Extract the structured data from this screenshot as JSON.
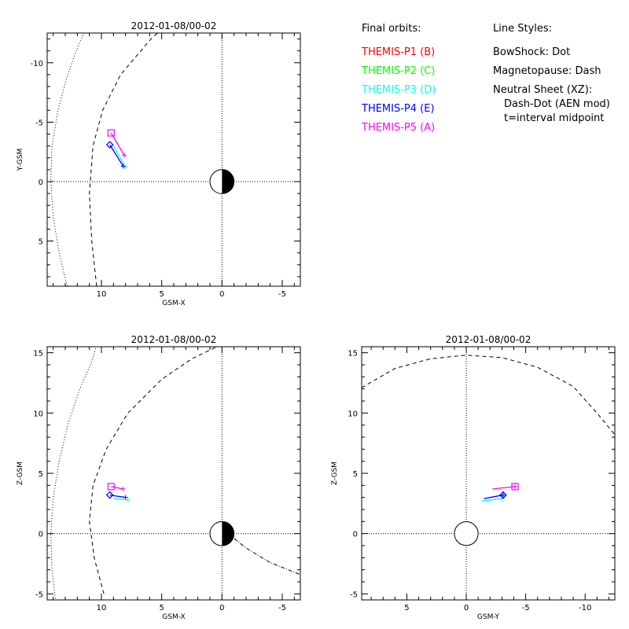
{
  "chart_data": [
    {
      "type": "line",
      "title": "2012-01-08/00-02",
      "xlabel": "GSM-X",
      "ylabel": "Y-GSM",
      "xlim": [
        14.5,
        -6.5
      ],
      "ylim": [
        8.8,
        -12.5
      ],
      "xticks": [
        {
          "v": 10,
          "label": "10"
        },
        {
          "v": 5,
          "label": "5"
        },
        {
          "v": 0,
          "label": "0"
        },
        {
          "v": -5,
          "label": "-5"
        }
      ],
      "yticks": [
        {
          "v": 5,
          "label": "5"
        },
        {
          "v": 0,
          "label": "0"
        },
        {
          "v": -5,
          "label": "-5"
        },
        {
          "v": -10,
          "label": "-10"
        }
      ],
      "bow_shock": [
        [
          12.8,
          9.0
        ],
        [
          13.5,
          6.0
        ],
        [
          14.0,
          3.0
        ],
        [
          14.2,
          0.0
        ],
        [
          14.1,
          -3.0
        ],
        [
          13.6,
          -6.0
        ],
        [
          12.8,
          -9.0
        ],
        [
          11.9,
          -11.5
        ],
        [
          11.3,
          -12.8
        ]
      ],
      "magnetopause": [
        [
          10.4,
          8.8
        ],
        [
          10.8,
          5.0
        ],
        [
          11.0,
          1.0
        ],
        [
          10.7,
          -3.0
        ],
        [
          9.9,
          -6.0
        ],
        [
          8.4,
          -9.0
        ],
        [
          5.9,
          -12.0
        ],
        [
          5.0,
          -12.8
        ]
      ],
      "series": [
        {
          "name": "THEMIS-P3",
          "color": "#00ffff",
          "points": [
            [
              9.0,
              -3.0
            ],
            [
              8.0,
              -1.2
            ]
          ]
        },
        {
          "name": "THEMIS-P4",
          "color": "#0000ff",
          "points": [
            [
              9.3,
              -3.1
            ],
            [
              8.2,
              -1.3
            ]
          ]
        },
        {
          "name": "THEMIS-P5",
          "color": "#ff00ff",
          "points": [
            [
              9.2,
              -4.1
            ],
            [
              8.1,
              -2.2
            ]
          ]
        }
      ],
      "markers": [
        {
          "name": "P5",
          "shape": "square",
          "color": "#ff00ff",
          "x": 9.2,
          "y": -4.1
        },
        {
          "name": "P4",
          "shape": "diamond",
          "color": "#0000ff",
          "x": 9.3,
          "y": -3.1
        }
      ]
    },
    {
      "type": "line",
      "title": "2012-01-08/00-02",
      "xlabel": "GSM-X",
      "ylabel": "Z-GSM",
      "xlim": [
        14.5,
        -6.5
      ],
      "ylim": [
        -5.5,
        15.5
      ],
      "xticks": [
        {
          "v": 10,
          "label": "10"
        },
        {
          "v": 5,
          "label": "5"
        },
        {
          "v": 0,
          "label": "0"
        },
        {
          "v": -5,
          "label": "-5"
        }
      ],
      "yticks": [
        {
          "v": 15,
          "label": "15"
        },
        {
          "v": 10,
          "label": "10"
        },
        {
          "v": 5,
          "label": "5"
        },
        {
          "v": 0,
          "label": "0"
        },
        {
          "v": -5,
          "label": "-5"
        }
      ],
      "bow_shock": [
        [
          13.8,
          -5.6
        ],
        [
          14.1,
          -3.0
        ],
        [
          14.2,
          0.0
        ],
        [
          14.0,
          3.0
        ],
        [
          13.5,
          6.0
        ],
        [
          12.8,
          9.0
        ],
        [
          11.8,
          12.0
        ],
        [
          10.9,
          14.0
        ],
        [
          10.4,
          15.6
        ]
      ],
      "magnetopause": [
        [
          9.8,
          -5.0
        ],
        [
          10.6,
          -2.0
        ],
        [
          11.0,
          1.0
        ],
        [
          10.7,
          4.0
        ],
        [
          9.6,
          7.0
        ],
        [
          7.8,
          10.0
        ],
        [
          5.0,
          12.8
        ],
        [
          2.5,
          14.5
        ],
        [
          0.0,
          15.7
        ]
      ],
      "neutral_sheet": [
        [
          -0.5,
          0.0
        ],
        [
          -2.0,
          -1.2
        ],
        [
          -4.0,
          -2.4
        ],
        [
          -6.5,
          -3.4
        ]
      ],
      "series": [
        {
          "name": "THEMIS-P3",
          "color": "#00ffff",
          "points": [
            [
              9.0,
              2.9
            ],
            [
              7.8,
              2.8
            ]
          ]
        },
        {
          "name": "THEMIS-P4",
          "color": "#0000ff",
          "points": [
            [
              9.3,
              3.2
            ],
            [
              8.0,
              3.0
            ]
          ]
        },
        {
          "name": "THEMIS-P5",
          "color": "#ff00ff",
          "points": [
            [
              9.2,
              3.9
            ],
            [
              8.2,
              3.7
            ]
          ]
        }
      ],
      "markers": [
        {
          "name": "P5",
          "shape": "square",
          "color": "#ff00ff",
          "x": 9.2,
          "y": 3.9
        },
        {
          "name": "P4",
          "shape": "diamond",
          "color": "#0000ff",
          "x": 9.3,
          "y": 3.2
        }
      ]
    },
    {
      "type": "line",
      "title": "2012-01-08/00-02",
      "xlabel": "GSM-Y",
      "ylabel": "Z-GSM",
      "xlim": [
        8.8,
        -12.5
      ],
      "ylim": [
        -5.5,
        15.5
      ],
      "xticks": [
        {
          "v": 5,
          "label": "5"
        },
        {
          "v": 0,
          "label": "0"
        },
        {
          "v": -5,
          "label": "-5"
        },
        {
          "v": -10,
          "label": "-10"
        }
      ],
      "yticks": [
        {
          "v": 15,
          "label": "15"
        },
        {
          "v": 10,
          "label": "10"
        },
        {
          "v": 5,
          "label": "5"
        },
        {
          "v": 0,
          "label": "0"
        },
        {
          "v": -5,
          "label": "-5"
        }
      ],
      "magnetopause": [
        [
          8.8,
          12.1
        ],
        [
          6.0,
          13.7
        ],
        [
          3.0,
          14.5
        ],
        [
          0.0,
          14.8
        ],
        [
          -3.0,
          14.6
        ],
        [
          -6.0,
          13.8
        ],
        [
          -9.0,
          12.2
        ],
        [
          -11.0,
          10.0
        ],
        [
          -12.5,
          8.2
        ]
      ],
      "series": [
        {
          "name": "THEMIS-P3",
          "color": "#00ffff",
          "points": [
            [
              -1.3,
              2.7
            ],
            [
              -3.0,
              2.9
            ]
          ]
        },
        {
          "name": "THEMIS-P4",
          "color": "#0000ff",
          "points": [
            [
              -1.5,
              2.9
            ],
            [
              -3.1,
              3.2
            ]
          ]
        },
        {
          "name": "THEMIS-P5",
          "color": "#ff00ff",
          "points": [
            [
              -2.2,
              3.7
            ],
            [
              -4.1,
              3.9
            ]
          ]
        }
      ],
      "markers": [
        {
          "name": "P5",
          "shape": "square",
          "color": "#ff00ff",
          "x": -4.1,
          "y": 3.9
        },
        {
          "name": "P4",
          "shape": "diamond",
          "color": "#0000ff",
          "x": -3.1,
          "y": 3.2
        }
      ]
    }
  ],
  "legend": {
    "orbits_title": "Final orbits:",
    "probes": [
      {
        "label": "THEMIS-P1 (B)",
        "color": "#ff0000"
      },
      {
        "label": "THEMIS-P2 (C)",
        "color": "#00ff00"
      },
      {
        "label": "THEMIS-P3 (D)",
        "color": "#00ffff"
      },
      {
        "label": "THEMIS-P4 (E)",
        "color": "#0000ff"
      },
      {
        "label": "THEMIS-P5 (A)",
        "color": "#ff00ff"
      }
    ],
    "styles_title": "Line Styles:",
    "styles": [
      "BowShock: Dot",
      "Magnetopause: Dash",
      "Neutral Sheet (XZ):",
      "Dash-Dot (AEN mod)",
      "t=interval midpoint"
    ]
  }
}
